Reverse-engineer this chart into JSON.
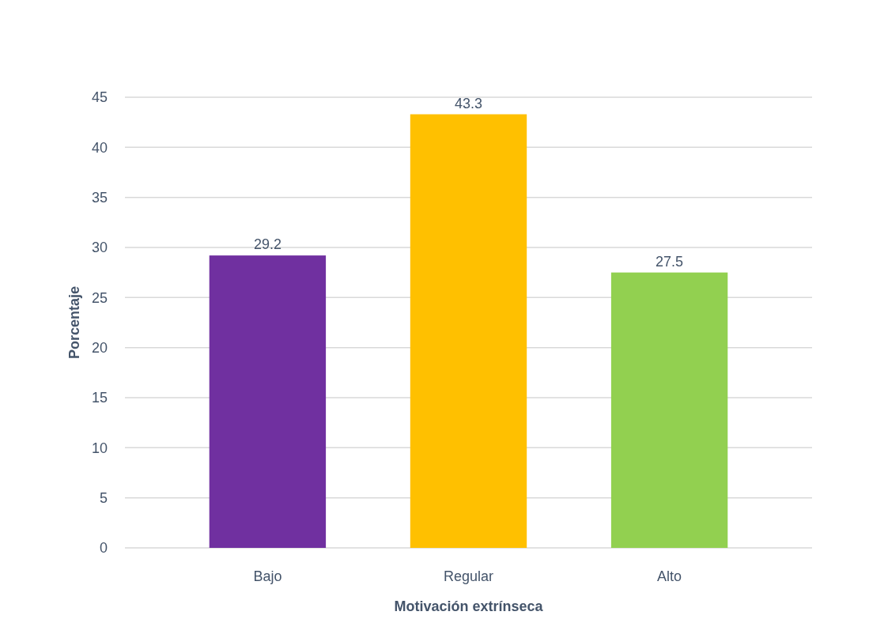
{
  "chart_data": {
    "type": "bar",
    "xlabel": "Motivación extrínseca",
    "ylabel": "Porcentaje",
    "categories": [
      "Bajo",
      "Regular",
      "Alto"
    ],
    "values": [
      29.2,
      43.3,
      27.5
    ],
    "colors": [
      "#7030a0",
      "#ffc000",
      "#92d050"
    ],
    "ylim": [
      0,
      45
    ],
    "yticks": [
      0,
      5,
      10,
      15,
      20,
      25,
      30,
      35,
      40,
      45
    ],
    "grid": true,
    "data_labels": true
  }
}
